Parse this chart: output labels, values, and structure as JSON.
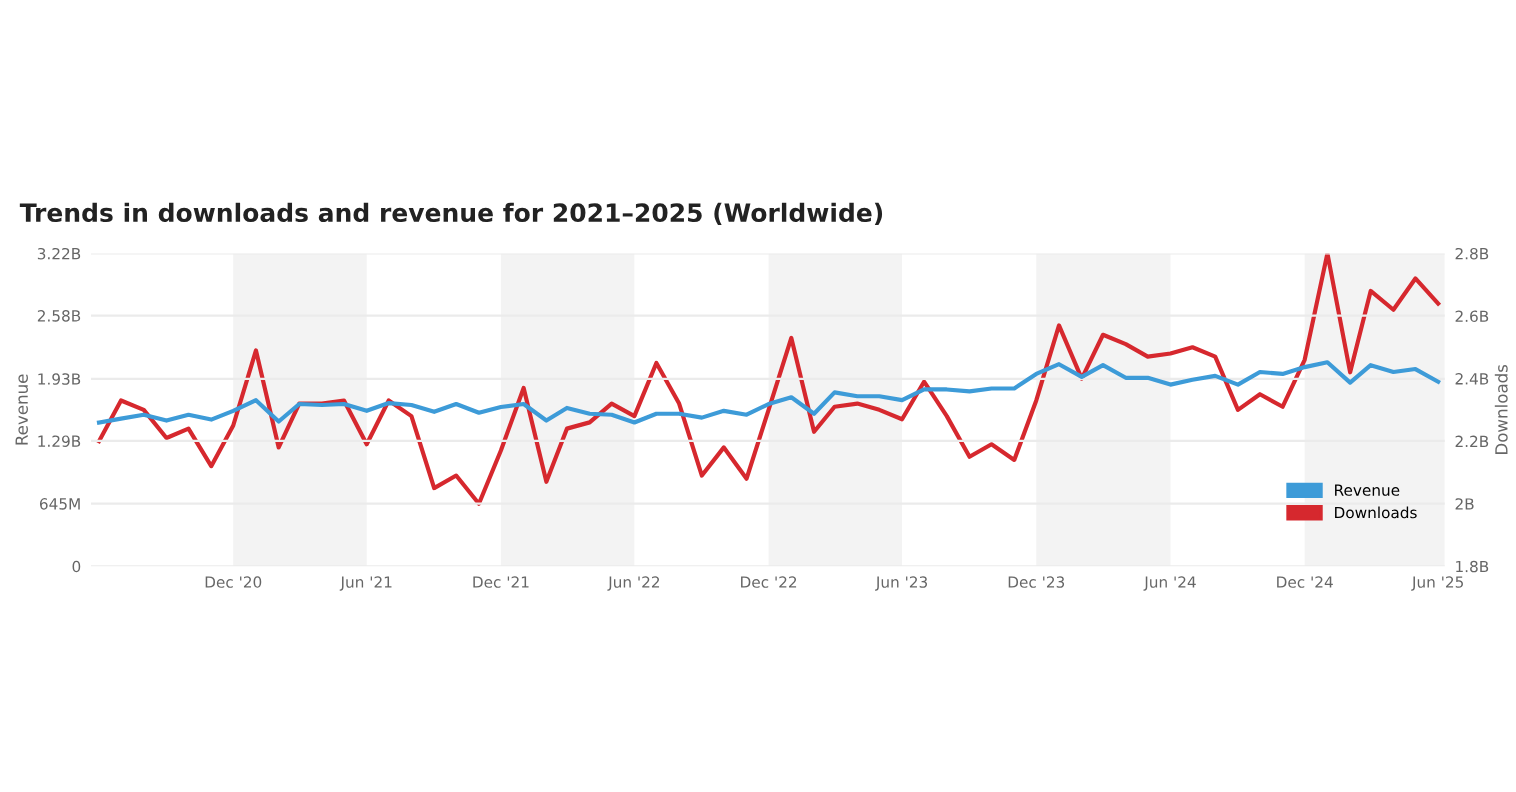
{
  "chart_data": {
    "type": "line",
    "title": "Trends in downloads and revenue for 2021–2025 (Worldwide)",
    "ylabel": "Revenue",
    "y2label": "Downloads",
    "x": [
      "2020-06",
      "2020-07",
      "2020-08",
      "2020-09",
      "2020-10",
      "2020-11",
      "2020-12",
      "2021-01",
      "2021-02",
      "2021-03",
      "2021-04",
      "2021-05",
      "2021-06",
      "2021-07",
      "2021-08",
      "2021-09",
      "2021-10",
      "2021-11",
      "2021-12",
      "2022-01",
      "2022-02",
      "2022-03",
      "2022-04",
      "2022-05",
      "2022-06",
      "2022-07",
      "2022-08",
      "2022-09",
      "2022-10",
      "2022-11",
      "2022-12",
      "2023-01",
      "2023-02",
      "2023-03",
      "2023-04",
      "2023-05",
      "2023-06",
      "2023-07",
      "2023-08",
      "2023-09",
      "2023-10",
      "2023-11",
      "2023-12",
      "2024-01",
      "2024-02",
      "2024-03",
      "2024-04",
      "2024-05",
      "2024-06",
      "2024-07",
      "2024-08",
      "2024-09",
      "2024-10",
      "2024-11",
      "2024-12",
      "2025-01",
      "2025-02",
      "2025-03",
      "2025-04",
      "2025-05",
      "2025-06"
    ],
    "series": [
      {
        "name": "Revenue",
        "color": "#3d9bd8",
        "values": [
          1480000000,
          1520000000,
          1560000000,
          1500000000,
          1560000000,
          1510000000,
          1600000000,
          1710000000,
          1490000000,
          1670000000,
          1660000000,
          1670000000,
          1600000000,
          1680000000,
          1660000000,
          1590000000,
          1670000000,
          1580000000,
          1640000000,
          1670000000,
          1500000000,
          1630000000,
          1570000000,
          1560000000,
          1480000000,
          1570000000,
          1570000000,
          1530000000,
          1600000000,
          1560000000,
          1670000000,
          1740000000,
          1570000000,
          1790000000,
          1750000000,
          1750000000,
          1710000000,
          1820000000,
          1820000000,
          1800000000,
          1830000000,
          1830000000,
          1980000000,
          2080000000,
          1950000000,
          2070000000,
          1940000000,
          1940000000,
          1870000000,
          1920000000,
          1960000000,
          1870000000,
          2000000000,
          1980000000,
          2050000000,
          2100000000,
          1890000000,
          2070000000,
          2000000000,
          2030000000,
          1900000000
        ]
      },
      {
        "name": "Downloads",
        "color": "#d6282e",
        "axis": "y2",
        "values": [
          2.2,
          2.33,
          2.3,
          2.21,
          2.24,
          2.12,
          2.25,
          2.49,
          2.18,
          2.32,
          2.32,
          2.33,
          2.19,
          2.33,
          2.28,
          2.05,
          2.09,
          2.0,
          2.17,
          2.37,
          2.07,
          2.24,
          2.26,
          2.32,
          2.28,
          2.45,
          2.32,
          2.09,
          2.18,
          2.08,
          2.3,
          2.53,
          2.23,
          2.31,
          2.32,
          2.3,
          2.27,
          2.39,
          2.28,
          2.15,
          2.19,
          2.14,
          2.33,
          2.57,
          2.4,
          2.54,
          2.51,
          2.47,
          2.48,
          2.5,
          2.47,
          2.3,
          2.35,
          2.31,
          2.46,
          2.8,
          2.42,
          2.68,
          2.62,
          2.72,
          2.64
        ]
      }
    ],
    "xlim": [
      "2020-05-21",
      "2025-06-10"
    ],
    "xticks": [
      {
        "value": "2020-12",
        "label": "Dec '20"
      },
      {
        "value": "2021-06",
        "label": "Jun '21"
      },
      {
        "value": "2021-12",
        "label": "Dec '21"
      },
      {
        "value": "2022-06",
        "label": "Jun '22"
      },
      {
        "value": "2022-12",
        "label": "Dec '22"
      },
      {
        "value": "2023-06",
        "label": "Jun '23"
      },
      {
        "value": "2023-12",
        "label": "Dec '23"
      },
      {
        "value": "2024-06",
        "label": "Jun '24"
      },
      {
        "value": "2024-12",
        "label": "Dec '24"
      },
      {
        "value": "2025-06",
        "label": "Jun '25"
      }
    ],
    "ylim": [
      0,
      3220000000
    ],
    "yticks": [
      0,
      {
        "value": 645000000,
        "label": "645M"
      },
      {
        "value": 1290000000,
        "label": "1.29B"
      },
      {
        "value": 1930000000,
        "label": "1.93B"
      },
      {
        "value": 2580000000,
        "label": "2.58B"
      },
      {
        "value": 3220000000,
        "label": "3.22B"
      }
    ],
    "y2lim": [
      1.8,
      2.8
    ],
    "y2ticks": [
      {
        "value": 1.8,
        "label": "1.8B"
      },
      {
        "value": 2.0,
        "label": "2B"
      },
      {
        "value": 2.2,
        "label": "2.2B"
      },
      {
        "value": 2.4,
        "label": "2.4B"
      },
      {
        "value": 2.6,
        "label": "2.6B"
      },
      {
        "value": 2.8,
        "label": "2.8B"
      }
    ],
    "bands": [
      {
        "axis": "x",
        "from": "2020-12",
        "to": "2021-06",
        "color": "#f3f3f3"
      },
      {
        "axis": "x",
        "from": "2021-12",
        "to": "2022-06",
        "color": "#f3f3f3"
      },
      {
        "axis": "x",
        "from": "2022-12",
        "to": "2023-06",
        "color": "#f3f3f3"
      },
      {
        "axis": "x",
        "from": "2023-12",
        "to": "2024-06",
        "color": "#f3f3f3"
      },
      {
        "axis": "x",
        "from": "2024-12",
        "to": "2025-06-10",
        "color": "#f3f3f3"
      }
    ],
    "grid": "y",
    "legend": "bottom right",
    "marker": "none",
    "line_style": "solid"
  }
}
